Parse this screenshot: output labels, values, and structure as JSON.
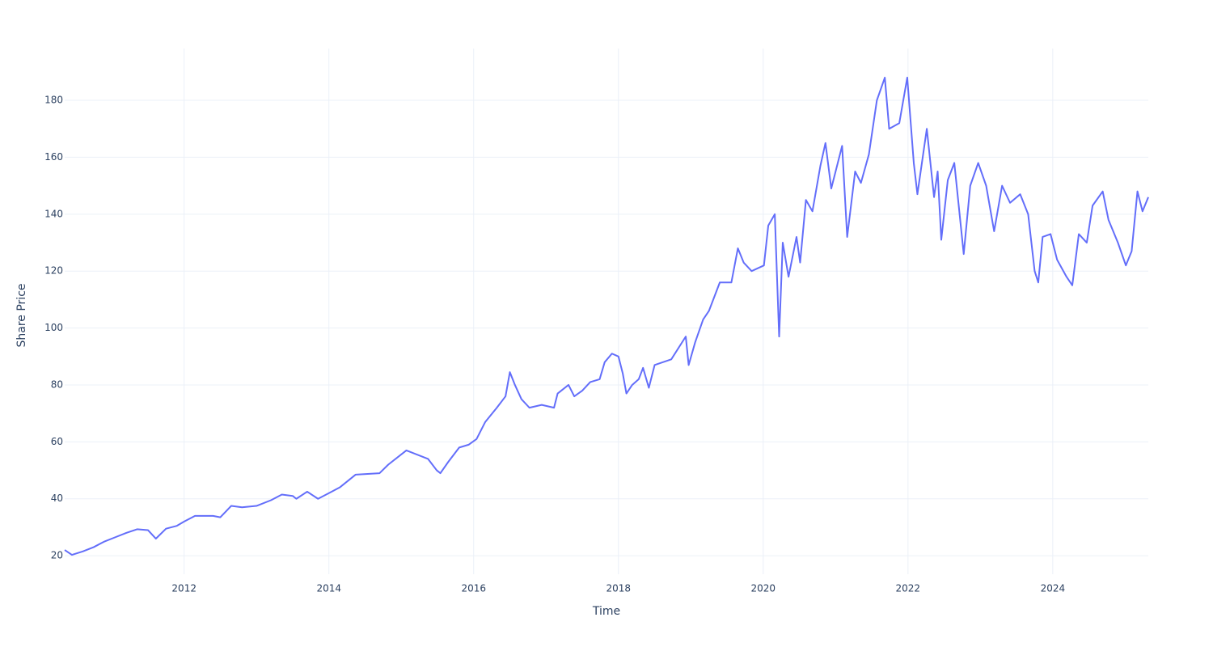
{
  "chart_data": {
    "type": "line",
    "x_label": "Time",
    "y_label": "Share Price",
    "xlim": [
      2010.35,
      2025.32
    ],
    "ylim": [
      13.5,
      198.2
    ],
    "xticks": [
      2012,
      2014,
      2016,
      2018,
      2020,
      2022,
      2024
    ],
    "yticks": [
      20,
      40,
      60,
      80,
      100,
      120,
      140,
      160,
      180
    ],
    "grid": true,
    "x": [
      2010.35,
      2010.45,
      2010.6,
      2010.75,
      2010.9,
      2011.05,
      2011.2,
      2011.35,
      2011.5,
      2011.61,
      2011.75,
      2011.9,
      2012.0,
      2012.15,
      2012.4,
      2012.5,
      2012.65,
      2012.8,
      2013.0,
      2013.2,
      2013.35,
      2013.5,
      2013.55,
      2013.7,
      2013.85,
      2014.0,
      2014.15,
      2014.37,
      2014.7,
      2014.82,
      2015.07,
      2015.37,
      2015.49,
      2015.54,
      2015.65,
      2015.8,
      2015.93,
      2016.04,
      2016.16,
      2016.32,
      2016.44,
      2016.5,
      2016.57,
      2016.66,
      2016.77,
      2016.94,
      2017.11,
      2017.16,
      2017.31,
      2017.39,
      2017.5,
      2017.61,
      2017.74,
      2017.81,
      2017.91,
      2018.0,
      2018.06,
      2018.11,
      2018.19,
      2018.28,
      2018.34,
      2018.42,
      2018.5,
      2018.73,
      2018.93,
      2018.97,
      2019.06,
      2019.17,
      2019.25,
      2019.4,
      2019.56,
      2019.65,
      2019.73,
      2019.84,
      2020.01,
      2020.07,
      2020.16,
      2020.22,
      2020.27,
      2020.35,
      2020.46,
      2020.51,
      2020.59,
      2020.68,
      2020.79,
      2020.86,
      2020.94,
      2021.09,
      2021.16,
      2021.27,
      2021.35,
      2021.46,
      2021.57,
      2021.68,
      2021.74,
      2021.88,
      2021.99,
      2022.08,
      2022.13,
      2022.26,
      2022.36,
      2022.41,
      2022.46,
      2022.55,
      2022.64,
      2022.77,
      2022.86,
      2022.97,
      2023.08,
      2023.19,
      2023.3,
      2023.41,
      2023.55,
      2023.66,
      2023.75,
      2023.8,
      2023.86,
      2023.97,
      2024.06,
      2024.19,
      2024.27,
      2024.36,
      2024.47,
      2024.55,
      2024.69,
      2024.77,
      2024.9,
      2025.01,
      2025.09,
      2025.17,
      2025.24,
      2025.32
    ],
    "series": [
      {
        "name": "Share Price",
        "color": "#636efa",
        "values": [
          22,
          20.3,
          21.5,
          23,
          25,
          26.5,
          28,
          29.3,
          29,
          26,
          29.5,
          30.5,
          32,
          34,
          34,
          33.5,
          37.5,
          37,
          37.5,
          39.5,
          41.5,
          41,
          40,
          42.5,
          40,
          42,
          44,
          48.5,
          49,
          52,
          57,
          54,
          50,
          49,
          53,
          58,
          59,
          61,
          67,
          72,
          76,
          84.5,
          80,
          75,
          72,
          73,
          72,
          77,
          80,
          76,
          78,
          81,
          82,
          88,
          91,
          90,
          84,
          77,
          80,
          82,
          86,
          79,
          87,
          89,
          97,
          87,
          95,
          103,
          106,
          116,
          116,
          128,
          123,
          120,
          122,
          136,
          140,
          97,
          130,
          118,
          132,
          123,
          145,
          141,
          157,
          165,
          149,
          164,
          132,
          155,
          151,
          161,
          180,
          188,
          170,
          172,
          188,
          158,
          147,
          170,
          146,
          155,
          131,
          152,
          158,
          126,
          150,
          158,
          150,
          134,
          150,
          144,
          147,
          140,
          120,
          116,
          132,
          133,
          124,
          118,
          115,
          133,
          130,
          143,
          148,
          138,
          130,
          122,
          127,
          148,
          141,
          146
        ]
      }
    ]
  }
}
